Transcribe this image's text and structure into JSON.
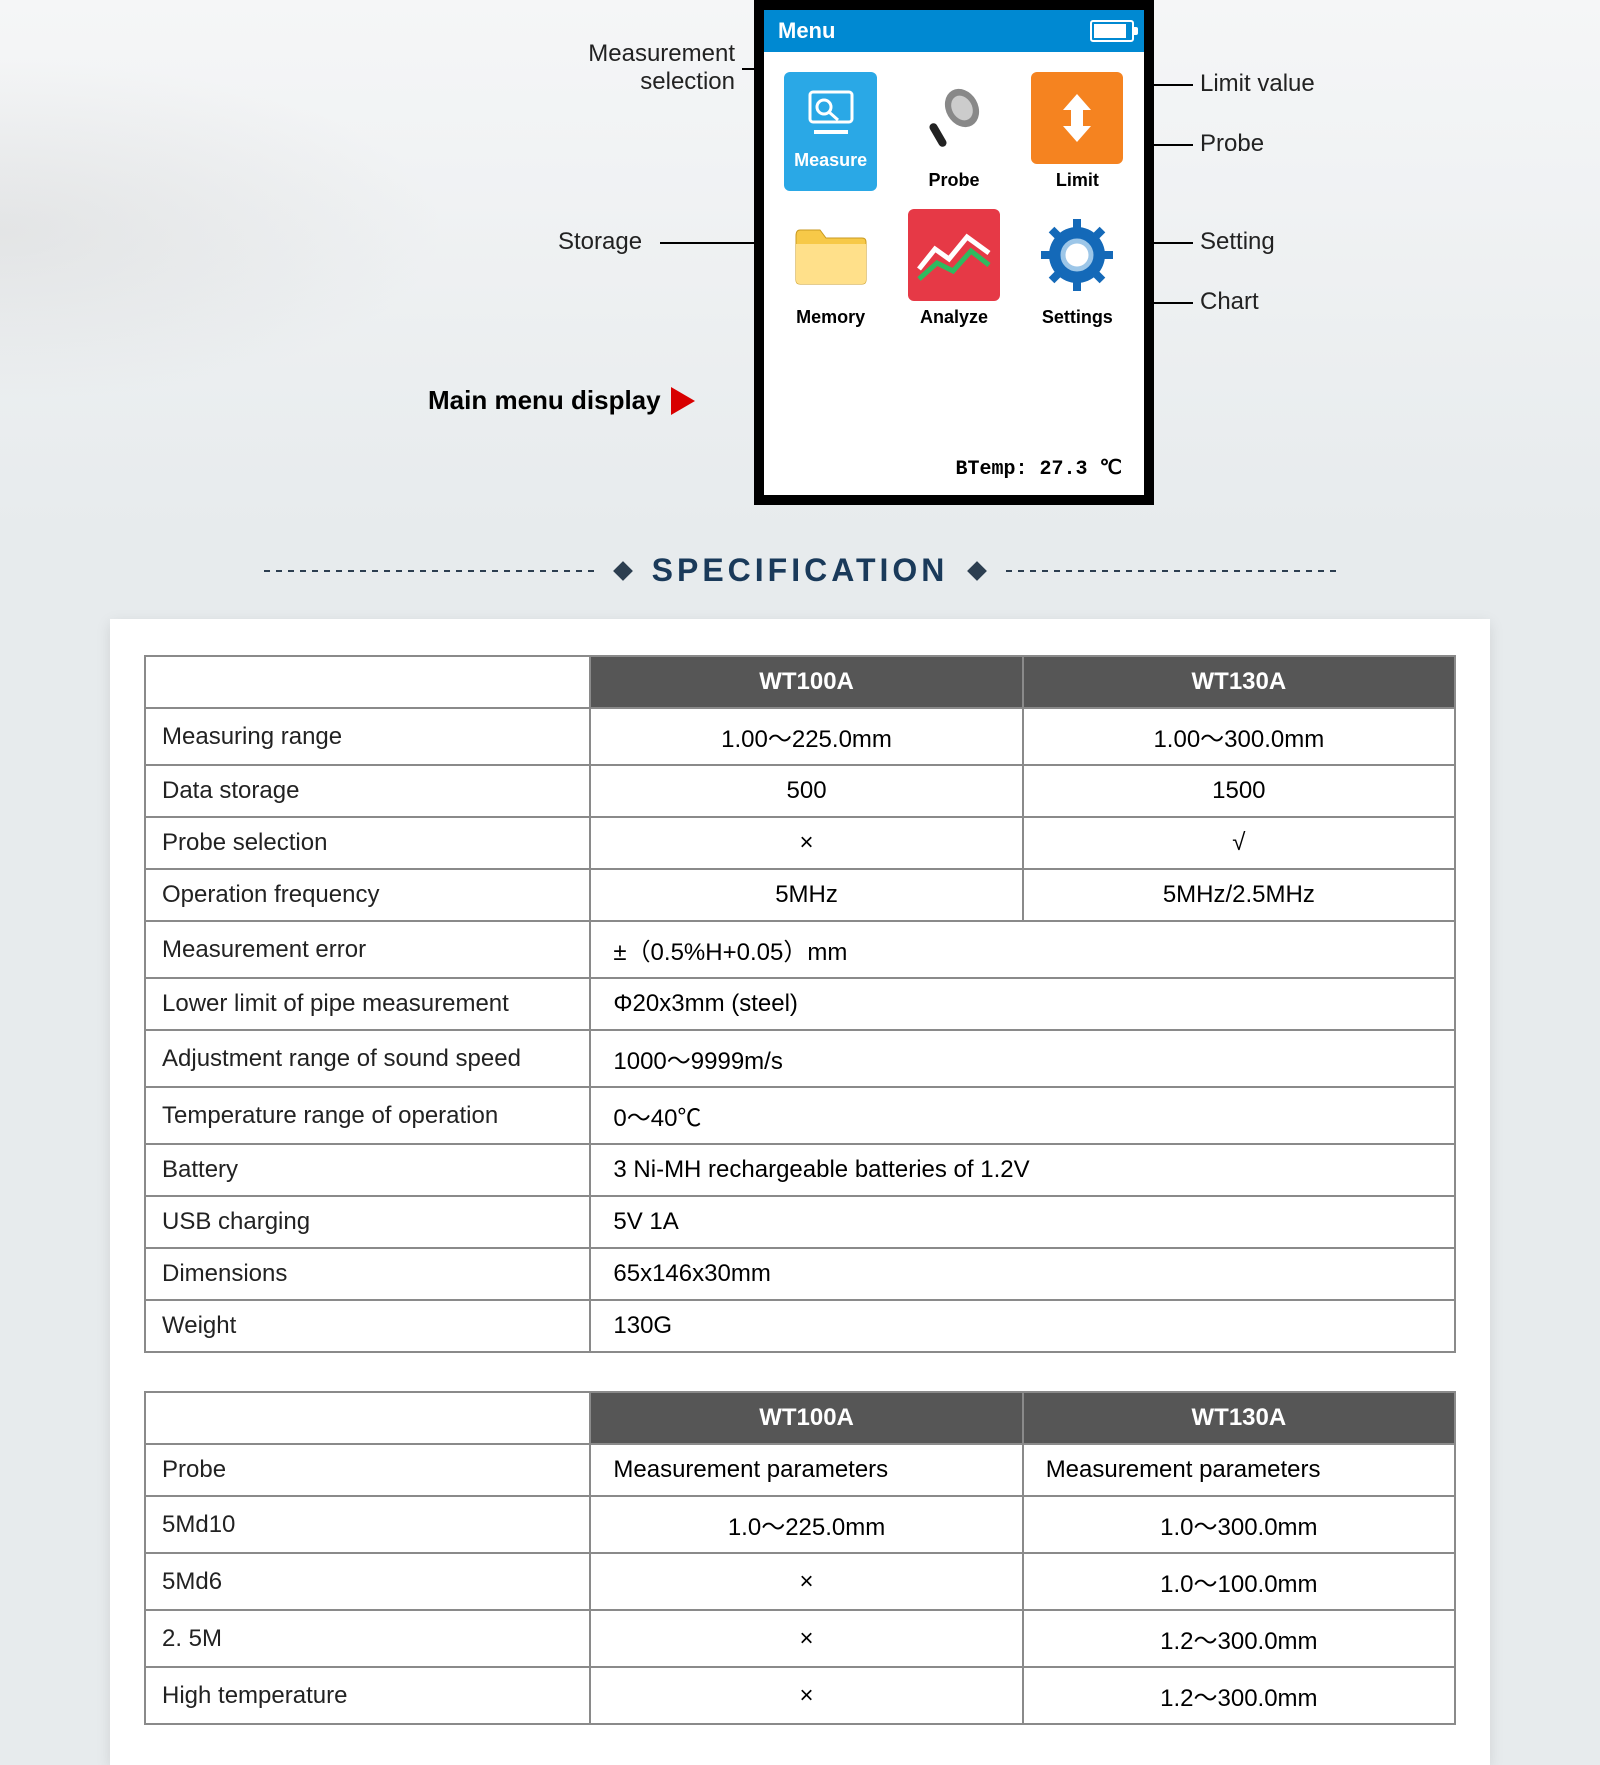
{
  "diagram": {
    "menu_header": "Menu",
    "btemp": "BTemp: 27.3 ℃",
    "icons": {
      "measure": "Measure",
      "probe": "Probe",
      "limit": "Limit",
      "memory": "Memory",
      "analyze": "Analyze",
      "settings": "Settings"
    },
    "callouts": {
      "measurement_selection_l1": "Measurement",
      "measurement_selection_l2": "selection",
      "storage": "Storage",
      "limit_value": "Limit value",
      "probe": "Probe",
      "setting": "Setting",
      "chart": "Chart"
    },
    "main_menu_label": "Main menu display",
    "icon_colors": {
      "measure_bg": "#2aa8e6",
      "limit_bg": "#f58320",
      "memory_bg": "#f7c948",
      "analyze_bg": "#e63946",
      "settings_bg": "#ffffff"
    }
  },
  "spec": {
    "title": "SPECIFICATION",
    "models": [
      "WT100A",
      "WT130A"
    ],
    "rows": [
      {
        "label": "Measuring range",
        "a": "1.00～225.0mm",
        "b": "1.00～300.0mm"
      },
      {
        "label": "Data storage",
        "a": "500",
        "b": "1500"
      },
      {
        "label": "Probe selection",
        "a": "×",
        "b": "√"
      },
      {
        "label": "Operation frequency",
        "a": "5MHz",
        "b": "5MHz/2.5MHz"
      },
      {
        "label": "Measurement error",
        "merged": "±（0.5%H+0.05）mm"
      },
      {
        "label": "Lower limit of pipe measurement",
        "merged": "Φ20x3mm (steel)"
      },
      {
        "label": "Adjustment range of sound speed",
        "merged": "1000～9999m/s"
      },
      {
        "label": "Temperature range of operation",
        "merged": "0～40℃"
      },
      {
        "label": "Battery",
        "merged": "3 Ni-MH rechargeable batteries of 1.2V"
      },
      {
        "label": "USB charging",
        "merged": "5V  1A"
      },
      {
        "label": "Dimensions",
        "merged": "65x146x30mm"
      },
      {
        "label": "Weight",
        "merged": "130G"
      }
    ],
    "probe_table": {
      "models": [
        "WT100A",
        "WT130A"
      ],
      "probe_header": "Probe",
      "param_header_a": "Measurement parameters",
      "param_header_b": "Measurement parameters",
      "rows": [
        {
          "label": "5Md10",
          "a": "1.0～225.0mm",
          "b": "1.0～300.0mm"
        },
        {
          "label": "5Md6",
          "a": "×",
          "b": "1.0～100.0mm"
        },
        {
          "label": "2. 5M",
          "a": "×",
          "b": "1.2～300.0mm"
        },
        {
          "label": "High temperature",
          "a": "×",
          "b": "1.2～300.0mm"
        }
      ]
    }
  },
  "style": {
    "header_bg": "#565656",
    "border_color": "#8a8a8a",
    "title_color": "#1a3a5a",
    "screen_header_bg": "#0089d2"
  }
}
